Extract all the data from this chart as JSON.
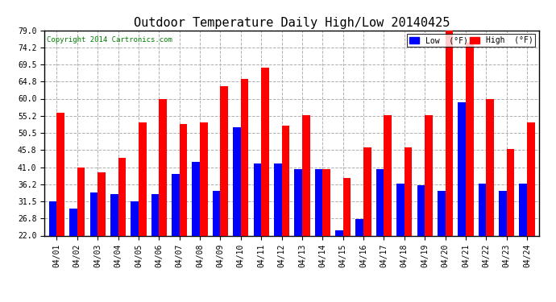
{
  "title": "Outdoor Temperature Daily High/Low 20140425",
  "copyright": "Copyright 2014 Cartronics.com",
  "dates": [
    "04/01",
    "04/02",
    "04/03",
    "04/04",
    "04/05",
    "04/06",
    "04/07",
    "04/08",
    "04/09",
    "04/10",
    "04/11",
    "04/12",
    "04/13",
    "04/14",
    "04/15",
    "04/16",
    "04/17",
    "04/18",
    "04/19",
    "04/20",
    "04/21",
    "04/22",
    "04/23",
    "04/24"
  ],
  "highs": [
    56.0,
    41.0,
    39.5,
    43.5,
    53.5,
    60.0,
    53.0,
    53.5,
    63.5,
    65.5,
    68.5,
    52.5,
    55.5,
    40.5,
    38.0,
    46.5,
    55.5,
    46.5,
    55.5,
    79.0,
    75.5,
    60.0,
    46.0,
    53.5
  ],
  "lows": [
    31.5,
    29.5,
    34.0,
    33.5,
    31.5,
    33.5,
    39.0,
    42.5,
    34.5,
    52.0,
    42.0,
    42.0,
    40.5,
    40.5,
    23.5,
    26.5,
    40.5,
    36.5,
    36.0,
    34.5,
    59.0,
    36.5,
    34.5,
    36.5
  ],
  "ylim": [
    22.0,
    79.0
  ],
  "yticks": [
    22.0,
    26.8,
    31.5,
    36.2,
    41.0,
    45.8,
    50.5,
    55.2,
    60.0,
    64.8,
    69.5,
    74.2,
    79.0
  ],
  "high_color": "#ff0000",
  "low_color": "#0000ff",
  "bg_color": "#ffffff",
  "plot_bg_color": "#ffffff",
  "grid_color": "#b0b0b0",
  "title_fontsize": 11,
  "legend_low_label": "Low  (°F)",
  "legend_high_label": "High  (°F)"
}
